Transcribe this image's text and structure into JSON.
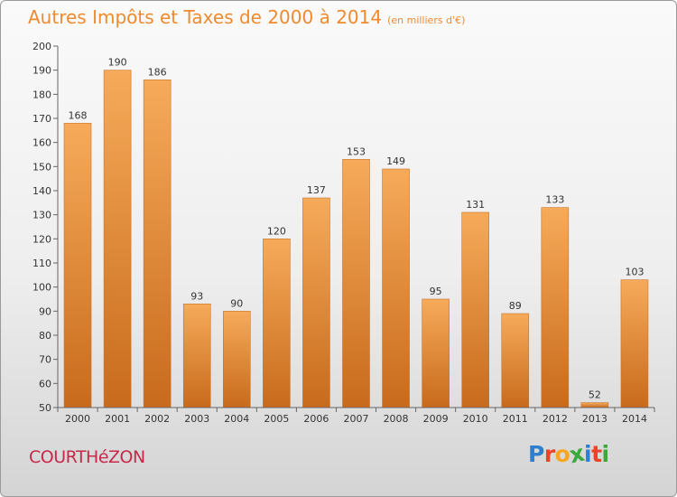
{
  "title": "Autres Impôts et Taxes de 2000 à 2014",
  "unit_note": "(en milliers d'€)",
  "town": "COURTHéZON",
  "logo": {
    "letters": [
      {
        "char": "P",
        "color": "#2f7fd0"
      },
      {
        "char": "r",
        "color": "#e9442a"
      },
      {
        "char": "o",
        "color": "#f5a623"
      },
      {
        "char": "x",
        "color": "#3aa83a"
      },
      {
        "char": "i",
        "color": "#2f7fd0"
      },
      {
        "char": "t",
        "color": "#e9442a"
      },
      {
        "char": "i",
        "color": "#3aa83a"
      }
    ]
  },
  "colors": {
    "bar_top": "#f6ab5a",
    "bar_bottom": "#c86a1c",
    "title": "#f08a2e",
    "town": "#c8284a"
  },
  "chart_data": {
    "type": "bar",
    "categories": [
      "2000",
      "2001",
      "2002",
      "2003",
      "2004",
      "2005",
      "2006",
      "2007",
      "2008",
      "2009",
      "2010",
      "2011",
      "2012",
      "2013",
      "2014"
    ],
    "values": [
      168,
      190,
      186,
      93,
      90,
      120,
      137,
      153,
      149,
      95,
      131,
      89,
      133,
      52,
      103
    ],
    "ylim": [
      50,
      200
    ],
    "yticks": [
      50,
      60,
      70,
      80,
      90,
      100,
      110,
      120,
      130,
      140,
      150,
      160,
      170,
      180,
      190,
      200
    ],
    "grid": false,
    "title": "Autres Impôts et Taxes de 2000 à 2014",
    "xlabel": "",
    "ylabel": ""
  }
}
